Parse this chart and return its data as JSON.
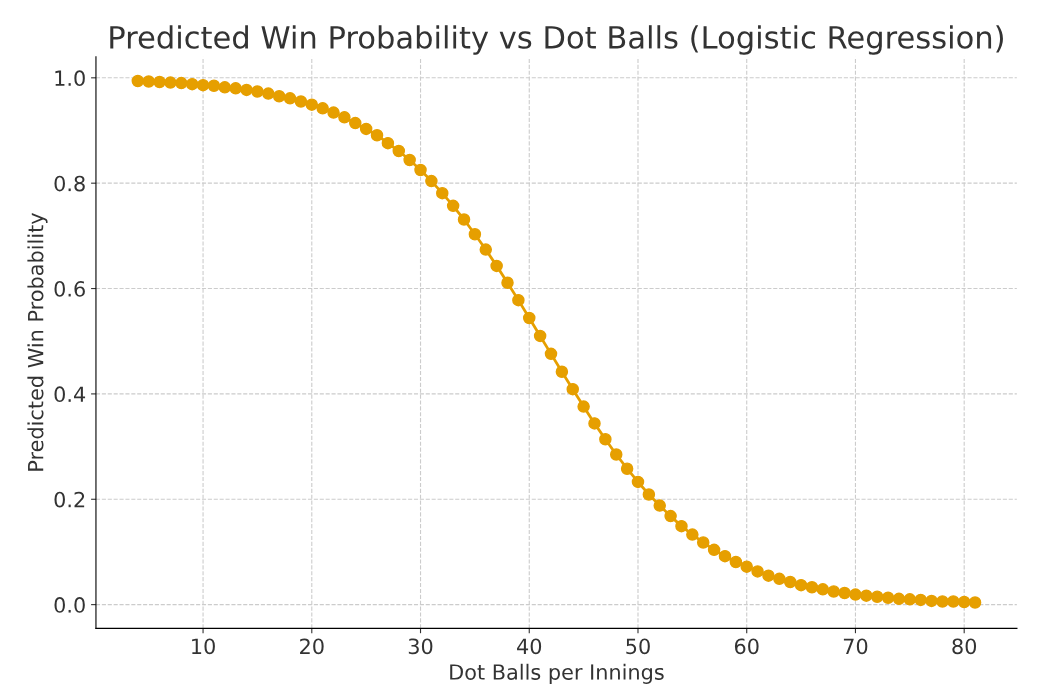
{
  "chart_data": {
    "type": "line",
    "title": "Predicted Win Probability vs Dot Balls (Logistic Regression)",
    "xlabel": "Dot Balls per Innings",
    "ylabel": "Predicted Win Probability",
    "x": [
      4,
      5,
      6,
      7,
      8,
      9,
      10,
      11,
      12,
      13,
      14,
      15,
      16,
      17,
      18,
      19,
      20,
      21,
      22,
      23,
      24,
      25,
      26,
      27,
      28,
      29,
      30,
      31,
      32,
      33,
      34,
      35,
      36,
      37,
      38,
      39,
      40,
      41,
      42,
      43,
      44,
      45,
      46,
      47,
      48,
      49,
      50,
      51,
      52,
      53,
      54,
      55,
      56,
      57,
      58,
      59,
      60,
      61,
      62,
      63,
      64,
      65,
      66,
      67,
      68,
      69,
      70,
      71,
      72,
      73,
      74,
      75,
      76,
      77,
      78,
      79,
      80,
      81
    ],
    "series": [
      {
        "color": "#e69f00",
        "values": [
          0.994,
          0.993,
          0.992,
          0.991,
          0.99,
          0.988,
          0.986,
          0.985,
          0.982,
          0.98,
          0.977,
          0.974,
          0.97,
          0.965,
          0.961,
          0.955,
          0.949,
          0.942,
          0.934,
          0.925,
          0.914,
          0.903,
          0.891,
          0.876,
          0.861,
          0.844,
          0.825,
          0.804,
          0.781,
          0.757,
          0.731,
          0.703,
          0.674,
          0.643,
          0.611,
          0.578,
          0.544,
          0.51,
          0.476,
          0.442,
          0.409,
          0.376,
          0.344,
          0.314,
          0.285,
          0.258,
          0.233,
          0.209,
          0.188,
          0.168,
          0.149,
          0.133,
          0.118,
          0.104,
          0.092,
          0.081,
          0.072,
          0.063,
          0.055,
          0.049,
          0.043,
          0.037,
          0.033,
          0.029,
          0.025,
          0.022,
          0.019,
          0.017,
          0.015,
          0.013,
          0.011,
          0.01,
          0.009,
          0.007,
          0.006,
          0.006,
          0.005,
          0.004
        ]
      }
    ],
    "xlim": [
      0.15,
      84.85
    ],
    "ylim": [
      -0.045,
      1.04
    ],
    "xticks": [
      10,
      20,
      30,
      40,
      50,
      60,
      70,
      80
    ],
    "yticks": [
      {
        "value": 0,
        "label": "0.0"
      },
      {
        "value": 0.2,
        "label": "0.2"
      },
      {
        "value": 0.4,
        "label": "0.4"
      },
      {
        "value": 0.6,
        "label": "0.6"
      },
      {
        "value": 0.8,
        "label": "0.8"
      },
      {
        "value": 1,
        "label": "1.0"
      }
    ],
    "grid": true,
    "marker": "circle",
    "line_style": "solid"
  }
}
